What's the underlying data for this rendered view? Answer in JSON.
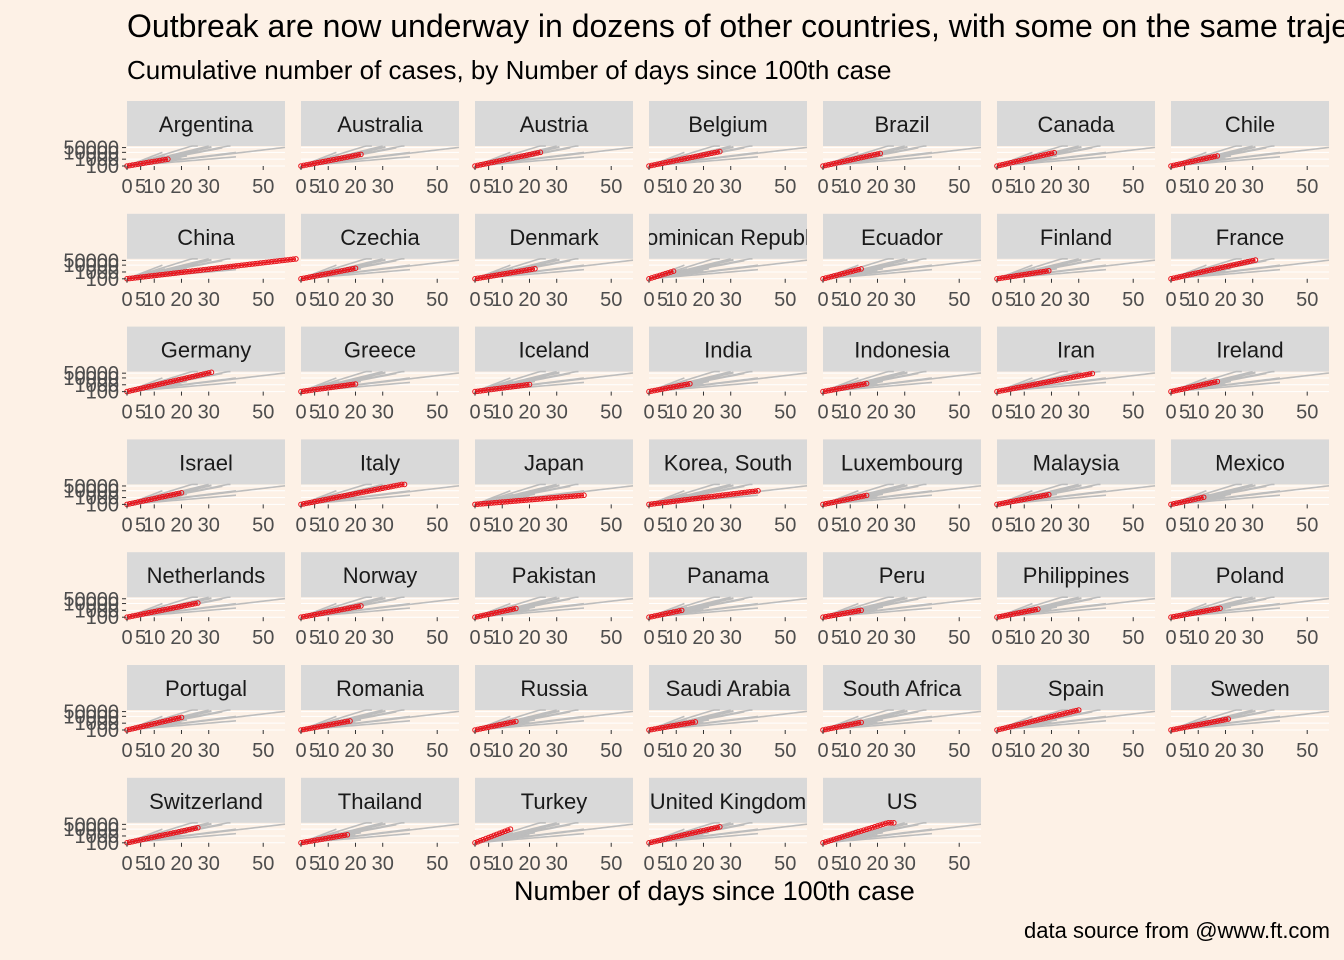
{
  "header": {
    "title": "Outbreak are now underway in dozens of other countries, with some on the same trajectory as China",
    "subtitle": "Cumulative number of cases, by Number of days since 100th case"
  },
  "caption": "data source from @www.ft.com",
  "colors": {
    "background": "#fdf1e6",
    "strip": "#d9d9d9",
    "highlight": "#e8121a",
    "context_lines": "#bdbdbd",
    "axis_text": "#4d4d4d"
  },
  "chart_data": {
    "type": "line",
    "title": "Outbreak are now underway in dozens of other countries, with some on the same trajectory as China",
    "subtitle": "Cumulative number of cases, by Number of days since 100th case",
    "xlabel": "Number of days since 100th case",
    "ylabel": "",
    "x_ticks": [
      0,
      5,
      10,
      20,
      30,
      50
    ],
    "y_ticks": [
      100,
      1000,
      10000,
      50000
    ],
    "y_tick_labels": [
      "100",
      "1000",
      "10000",
      "50000"
    ],
    "xlim": [
      0,
      58
    ],
    "y_scale": "log",
    "ylim": [
      100,
      85000
    ],
    "grid": true,
    "legend": "none",
    "panels": [
      {
        "name": "Argentina",
        "days": 15,
        "last": 1000
      },
      {
        "name": "Australia",
        "days": 22,
        "last": 5000
      },
      {
        "name": "Austria",
        "days": 24,
        "last": 10000
      },
      {
        "name": "Belgium",
        "days": 26,
        "last": 13000
      },
      {
        "name": "Brazil",
        "days": 21,
        "last": 7000
      },
      {
        "name": "Canada",
        "days": 21,
        "last": 9000
      },
      {
        "name": "Chile",
        "days": 17,
        "last": 3000
      },
      {
        "name": "China",
        "days": 62,
        "last": 82000
      },
      {
        "name": "Czechia",
        "days": 20,
        "last": 3500
      },
      {
        "name": "Denmark",
        "days": 22,
        "last": 3000
      },
      {
        "name": "Dominican Republic",
        "days": 9,
        "last": 1300
      },
      {
        "name": "Ecuador",
        "days": 14,
        "last": 2800
      },
      {
        "name": "Finland",
        "days": 19,
        "last": 1500
      },
      {
        "name": "France",
        "days": 31,
        "last": 56000
      },
      {
        "name": "Germany",
        "days": 31,
        "last": 67000
      },
      {
        "name": "Greece",
        "days": 20,
        "last": 1300
      },
      {
        "name": "Iceland",
        "days": 20,
        "last": 1100
      },
      {
        "name": "India",
        "days": 15,
        "last": 1400
      },
      {
        "name": "Indonesia",
        "days": 16,
        "last": 1500
      },
      {
        "name": "Iran",
        "days": 35,
        "last": 45000
      },
      {
        "name": "Ireland",
        "days": 17,
        "last": 3000
      },
      {
        "name": "Israel",
        "days": 20,
        "last": 5000
      },
      {
        "name": "Italy",
        "days": 38,
        "last": 100000
      },
      {
        "name": "Japan",
        "days": 40,
        "last": 2200
      },
      {
        "name": "Korea, South",
        "days": 40,
        "last": 9800
      },
      {
        "name": "Luxembourg",
        "days": 16,
        "last": 2100
      },
      {
        "name": "Malaysia",
        "days": 19,
        "last": 2700
      },
      {
        "name": "Mexico",
        "days": 12,
        "last": 1100
      },
      {
        "name": "Netherlands",
        "days": 26,
        "last": 12000
      },
      {
        "name": "Norway",
        "days": 22,
        "last": 4500
      },
      {
        "name": "Pakistan",
        "days": 15,
        "last": 1900
      },
      {
        "name": "Panama",
        "days": 12,
        "last": 1000
      },
      {
        "name": "Peru",
        "days": 14,
        "last": 1000
      },
      {
        "name": "Philippines",
        "days": 15,
        "last": 1500
      },
      {
        "name": "Poland",
        "days": 18,
        "last": 2000
      },
      {
        "name": "Portugal",
        "days": 20,
        "last": 7000
      },
      {
        "name": "Romania",
        "days": 18,
        "last": 2100
      },
      {
        "name": "Russia",
        "days": 15,
        "last": 1800
      },
      {
        "name": "Saudi Arabia",
        "days": 17,
        "last": 1500
      },
      {
        "name": "South Africa",
        "days": 14,
        "last": 1300
      },
      {
        "name": "Spain",
        "days": 30,
        "last": 85000
      },
      {
        "name": "Sweden",
        "days": 21,
        "last": 4000
      },
      {
        "name": "Switzerland",
        "days": 26,
        "last": 16000
      },
      {
        "name": "Thailand",
        "days": 17,
        "last": 1500
      },
      {
        "name": "Turkey",
        "days": 13,
        "last": 10000
      },
      {
        "name": "United Kingdom",
        "days": 26,
        "last": 22000
      },
      {
        "name": "US",
        "days": 26,
        "last": 160000
      }
    ]
  }
}
